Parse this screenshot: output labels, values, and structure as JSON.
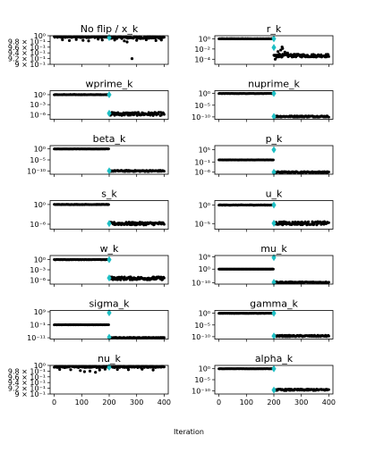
{
  "figure": {
    "xlabel": "Iteration",
    "colors": {
      "points": "#000000",
      "marker": "#1fbfc4",
      "frame": "#000000"
    }
  },
  "chart_data": [
    {
      "type": "scatter",
      "title": "No flip / x_k",
      "yscale": "linear",
      "ylim": [
        0.9,
        1.0
      ],
      "yticks": [
        1.0,
        0.98,
        0.96,
        0.94,
        0.92,
        0.9
      ],
      "ytick_labels": [
        "10⁰",
        "9.8 × 10⁻¹",
        "9.6 × 10⁻¹",
        "9.4 × 10⁻¹",
        "9.2 × 10⁻¹",
        "9 × 10⁻¹"
      ],
      "xticks": [
        0,
        100,
        200,
        300,
        400
      ],
      "xlim": [
        -15,
        415
      ],
      "phase1": {
        "x_range": [
          0,
          199
        ],
        "y_center": 0.996,
        "y_spread": 0.003,
        "outliers": [
          [
            30,
            0.986
          ],
          [
            55,
            0.983
          ],
          [
            80,
            0.987
          ],
          [
            105,
            0.984
          ],
          [
            125,
            0.982
          ],
          [
            160,
            0.988
          ],
          [
            175,
            0.985
          ]
        ]
      },
      "phase2": {
        "x_range": [
          200,
          400
        ],
        "y_center": 0.994,
        "y_spread": 0.004,
        "outliers": [
          [
            220,
            0.985
          ],
          [
            255,
            0.982
          ],
          [
            265,
            0.978
          ],
          [
            283,
            0.92
          ],
          [
            300,
            0.984
          ],
          [
            335,
            0.986
          ],
          [
            370,
            0.983
          ],
          [
            390,
            0.985
          ]
        ]
      },
      "markers": [
        [
          200,
          0.997
        ]
      ]
    },
    {
      "type": "scatter",
      "title": "r_k",
      "yscale": "log",
      "ylim_exp": [
        -5,
        0.6
      ],
      "ytick_exps": [
        0,
        -2,
        -4
      ],
      "ytick_labels": [
        "10⁰",
        "10⁻²",
        "10⁻⁴"
      ],
      "xticks": [
        0,
        100,
        200,
        300,
        400
      ],
      "xlim": [
        -15,
        415
      ],
      "phase1": {
        "x_range": [
          0,
          199
        ],
        "y_center_exp": 0.0,
        "y_spread_exp": 0.02
      },
      "phase2": {
        "x_range": [
          200,
          400
        ],
        "y_center_exp": -3.3,
        "y_spread_exp": 0.3,
        "outliers": [
          [
            205,
            -4.0
          ],
          [
            210,
            -3.6
          ],
          [
            215,
            -2.5
          ],
          [
            220,
            -3.0
          ],
          [
            225,
            -2.2
          ],
          [
            230,
            -1.6
          ],
          [
            232,
            -1.9
          ],
          [
            240,
            -2.6
          ],
          [
            245,
            -3.1
          ],
          [
            250,
            -2.8
          ]
        ]
      },
      "markers": [
        [
          200,
          0.0
        ],
        [
          200,
          -1.7
        ]
      ]
    },
    {
      "type": "scatter",
      "title": "wprime_k",
      "yscale": "log",
      "ylim_exp": [
        -7.4,
        1.2
      ],
      "ytick_exps": [
        0,
        -3,
        -6
      ],
      "ytick_labels": [
        "10⁰",
        "10⁻³",
        "10⁻⁶"
      ],
      "xticks": [
        0,
        100,
        200,
        300,
        400
      ],
      "xlim": [
        -15,
        415
      ],
      "phase1": {
        "x_range": [
          0,
          199
        ],
        "y_center_exp": 0.0,
        "y_spread_exp": 0.05
      },
      "phase2": {
        "x_range": [
          200,
          400
        ],
        "y_center_exp": -5.8,
        "y_spread_exp": 0.5
      },
      "markers": [
        [
          200,
          0.0
        ],
        [
          200,
          -5.6
        ]
      ]
    },
    {
      "type": "scatter",
      "title": "nuprime_k",
      "yscale": "log",
      "ylim_exp": [
        -11,
        1.2
      ],
      "ytick_exps": [
        0,
        -5,
        -10
      ],
      "ytick_labels": [
        "10⁰",
        "10⁻⁵",
        "10⁻¹⁰"
      ],
      "xticks": [
        0,
        100,
        200,
        300,
        400
      ],
      "xlim": [
        -15,
        415
      ],
      "phase1": {
        "x_range": [
          0,
          199
        ],
        "y_center_exp": 0.0,
        "y_spread_exp": 0.05
      },
      "phase2": {
        "x_range": [
          200,
          400
        ],
        "y_center_exp": -9.8,
        "y_spread_exp": 0.3
      },
      "markers": [
        [
          200,
          0.0
        ],
        [
          200,
          -9.8
        ]
      ]
    },
    {
      "type": "scatter",
      "title": "beta_k",
      "yscale": "log",
      "ylim_exp": [
        -11.5,
        1.5
      ],
      "ytick_exps": [
        0,
        -5,
        -10
      ],
      "ytick_labels": [
        "10⁰",
        "10⁻⁵",
        "10⁻¹⁰"
      ],
      "xticks": [
        0,
        100,
        200,
        300,
        400
      ],
      "xlim": [
        -15,
        415
      ],
      "phase1": {
        "x_range": [
          0,
          199
        ],
        "y_center_exp": 0.0,
        "y_spread_exp": 0.05
      },
      "phase2": {
        "x_range": [
          200,
          400
        ],
        "y_center_exp": -10.0,
        "y_spread_exp": 0.3
      },
      "markers": [
        [
          200,
          -10.0
        ]
      ]
    },
    {
      "type": "scatter",
      "title": "p_k",
      "yscale": "log",
      "ylim_exp": [
        -7,
        7
      ],
      "ytick_exps": [
        5,
        -1,
        -6
      ],
      "ytick_labels": [
        "10⁵",
        "10⁻¹",
        "10⁻⁶"
      ],
      "xticks": [
        0,
        100,
        200,
        300,
        400
      ],
      "xlim": [
        -15,
        415
      ],
      "phase1": {
        "x_range": [
          0,
          199
        ],
        "y_center_exp": 0.0,
        "y_spread_exp": 0.05
      },
      "phase2": {
        "x_range": [
          200,
          400
        ],
        "y_center_exp": -6.0,
        "y_spread_exp": 0.3
      },
      "markers": [
        [
          200,
          5.0
        ],
        [
          200,
          -6.0
        ]
      ]
    },
    {
      "type": "scatter",
      "title": "s_k",
      "yscale": "log",
      "ylim_exp": [
        -7.5,
        1.2
      ],
      "ytick_exps": [
        0,
        -6
      ],
      "ytick_labels": [
        "10⁰",
        "10⁻⁶"
      ],
      "xticks": [
        0,
        100,
        200,
        300,
        400
      ],
      "xlim": [
        -15,
        415
      ],
      "phase1": {
        "x_range": [
          0,
          199
        ],
        "y_center_exp": 0.0,
        "y_spread_exp": 0.05
      },
      "phase2": {
        "x_range": [
          200,
          400
        ],
        "y_center_exp": -5.8,
        "y_spread_exp": 0.45
      },
      "markers": [
        [
          200,
          -5.8
        ]
      ]
    },
    {
      "type": "scatter",
      "title": "u_k",
      "yscale": "log",
      "ylim_exp": [
        -6.5,
        1.2
      ],
      "ytick_exps": [
        0,
        -5
      ],
      "ytick_labels": [
        "10⁰",
        "10⁻⁵"
      ],
      "xticks": [
        0,
        100,
        200,
        300,
        400
      ],
      "xlim": [
        -15,
        415
      ],
      "phase1": {
        "x_range": [
          0,
          199
        ],
        "y_center_exp": 0.0,
        "y_spread_exp": 0.05
      },
      "phase2": {
        "x_range": [
          200,
          400
        ],
        "y_center_exp": -4.9,
        "y_spread_exp": 0.45
      },
      "markers": [
        [
          200,
          0.0
        ],
        [
          200,
          -4.9
        ]
      ]
    },
    {
      "type": "scatter",
      "title": "w_k",
      "yscale": "log",
      "ylim_exp": [
        -7.2,
        1.2
      ],
      "ytick_exps": [
        0,
        -3,
        -6
      ],
      "ytick_labels": [
        "10⁰",
        "10⁻³",
        "10⁻⁶"
      ],
      "xticks": [
        0,
        100,
        200,
        300,
        400
      ],
      "xlim": [
        -15,
        415
      ],
      "phase1": {
        "x_range": [
          0,
          199
        ],
        "y_center_exp": 0.0,
        "y_spread_exp": 0.05
      },
      "phase2": {
        "x_range": [
          200,
          400
        ],
        "y_center_exp": -5.5,
        "y_spread_exp": 0.45
      },
      "markers": [
        [
          200,
          0.0
        ],
        [
          200,
          -5.4
        ]
      ]
    },
    {
      "type": "scatter",
      "title": "mu_k",
      "yscale": "log",
      "ylim_exp": [
        -11,
        10
      ],
      "ytick_exps": [
        9,
        0,
        -10
      ],
      "ytick_labels": [
        "10⁹",
        "10⁰",
        "10⁻¹⁰"
      ],
      "xticks": [
        0,
        100,
        200,
        300,
        400
      ],
      "xlim": [
        -15,
        415
      ],
      "phase1": {
        "x_range": [
          0,
          199
        ],
        "y_center_exp": 0.0,
        "y_spread_exp": 0.06
      },
      "phase2": {
        "x_range": [
          200,
          400
        ],
        "y_center_exp": -9.7,
        "y_spread_exp": 0.4
      },
      "markers": [
        [
          200,
          8.5
        ],
        [
          200,
          -9.7
        ]
      ]
    },
    {
      "type": "scatter",
      "title": "sigma_k",
      "yscale": "log",
      "ylim_exp": [
        -12,
        10
      ],
      "ytick_exps": [
        9,
        -1,
        -11
      ],
      "ytick_labels": [
        "10⁹",
        "10⁻¹",
        "10⁻¹¹"
      ],
      "xticks": [
        0,
        100,
        200,
        300,
        400
      ],
      "xlim": [
        -15,
        415
      ],
      "phase1": {
        "x_range": [
          0,
          199
        ],
        "y_center_exp": -1.0,
        "y_spread_exp": 0.06
      },
      "phase2": {
        "x_range": [
          200,
          400
        ],
        "y_center_exp": -11.0,
        "y_spread_exp": 0.3
      },
      "markers": [
        [
          200,
          8.2
        ],
        [
          200,
          -10.8
        ]
      ]
    },
    {
      "type": "scatter",
      "title": "gamma_k",
      "yscale": "log",
      "ylim_exp": [
        -11,
        1.2
      ],
      "ytick_exps": [
        0,
        -5,
        -10
      ],
      "ytick_labels": [
        "10⁰",
        "10⁻⁵",
        "10⁻¹⁰"
      ],
      "xticks": [
        0,
        100,
        200,
        300,
        400
      ],
      "xlim": [
        -15,
        415
      ],
      "phase1": {
        "x_range": [
          0,
          199
        ],
        "y_center_exp": 0.0,
        "y_spread_exp": 0.05
      },
      "phase2": {
        "x_range": [
          200,
          400
        ],
        "y_center_exp": -9.7,
        "y_spread_exp": 0.3
      },
      "markers": [
        [
          200,
          0.0
        ],
        [
          200,
          -9.7
        ]
      ]
    },
    {
      "type": "scatter",
      "title": "nu_k",
      "yscale": "linear",
      "ylim": [
        0.9,
        1.0
      ],
      "yticks": [
        1.0,
        0.98,
        0.96,
        0.94,
        0.92,
        0.9
      ],
      "ytick_labels": [
        "10⁰",
        "9.8 × 10⁻¹",
        "9.6 × 10⁻¹",
        "9.4 × 10⁻¹",
        "9.2 × 10⁻¹",
        "9 × 10⁻¹"
      ],
      "xticks": [
        0,
        100,
        200,
        300,
        400
      ],
      "xlim": [
        -15,
        415
      ],
      "xtick_labels": [
        "0",
        "100",
        "200",
        "300",
        "400"
      ],
      "phase1": {
        "x_range": [
          0,
          199
        ],
        "y_center": 0.995,
        "y_spread": 0.003,
        "outliers": [
          [
            20,
            0.986
          ],
          [
            60,
            0.985
          ],
          [
            95,
            0.982
          ],
          [
            110,
            0.978
          ],
          [
            130,
            0.98
          ],
          [
            150,
            0.976
          ],
          [
            165,
            0.984
          ],
          [
            185,
            0.987
          ]
        ]
      },
      "phase2": {
        "x_range": [
          200,
          400
        ],
        "y_center": 0.995,
        "y_spread": 0.003,
        "outliers": [
          [
            230,
            0.986
          ],
          [
            270,
            0.985
          ],
          [
            320,
            0.987
          ],
          [
            360,
            0.984
          ]
        ]
      },
      "markers": [
        [
          200,
          0.997
        ]
      ]
    },
    {
      "type": "scatter",
      "title": "alpha_k",
      "yscale": "log",
      "ylim_exp": [
        -11.5,
        1.5
      ],
      "ytick_exps": [
        0,
        -5,
        -10
      ],
      "ytick_labels": [
        "10⁰",
        "10⁻⁵",
        "10⁻¹⁰"
      ],
      "xticks": [
        0,
        100,
        200,
        300,
        400
      ],
      "xlim": [
        -15,
        415
      ],
      "xtick_labels": [
        "0",
        "100",
        "200",
        "300",
        "400"
      ],
      "phase1": {
        "x_range": [
          0,
          199
        ],
        "y_center_exp": 0.0,
        "y_spread_exp": 0.05
      },
      "phase2": {
        "x_range": [
          200,
          400
        ],
        "y_center_exp": -9.6,
        "y_spread_exp": 0.35
      },
      "markers": [
        [
          200,
          0.0
        ],
        [
          200,
          -9.7
        ]
      ]
    }
  ]
}
